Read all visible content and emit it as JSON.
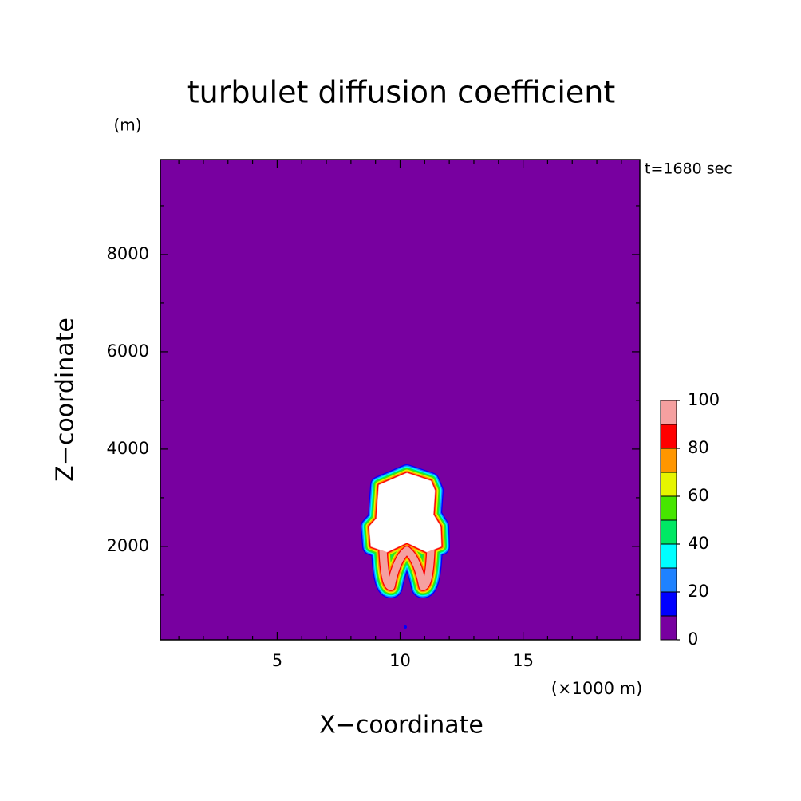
{
  "chart_data": {
    "type": "contour",
    "title": "turbulet diffusion coefficient",
    "y_unit": "(m)",
    "x_unit": "(×1000 m)",
    "annotation": "t=1680 sec",
    "xlabel": "X−coordinate",
    "ylabel": "Z−coordinate",
    "xlim": [
      0.25,
      19.75
    ],
    "ylim": [
      80,
      9950
    ],
    "xticks": [
      5,
      10,
      15
    ],
    "yticks": [
      2000,
      4000,
      6000,
      8000
    ],
    "xminorticks": [
      1,
      2,
      3,
      4,
      6,
      7,
      8,
      9,
      11,
      12,
      13,
      14,
      16,
      17,
      18,
      19
    ],
    "yminorticks": [
      1000,
      3000,
      5000,
      7000,
      9000
    ],
    "background_color": "#7800a0",
    "colorbar": {
      "levels": [
        0,
        10,
        20,
        30,
        40,
        50,
        60,
        70,
        80,
        90,
        100
      ],
      "colors": [
        "#7800a0",
        "#0000ff",
        "#1e82ff",
        "#00ffff",
        "#00e864",
        "#46e600",
        "#e6f500",
        "#ff9600",
        "#ff0000",
        "#f5a0a0"
      ],
      "ticks": [
        0,
        20,
        40,
        60,
        80,
        100
      ]
    }
  }
}
